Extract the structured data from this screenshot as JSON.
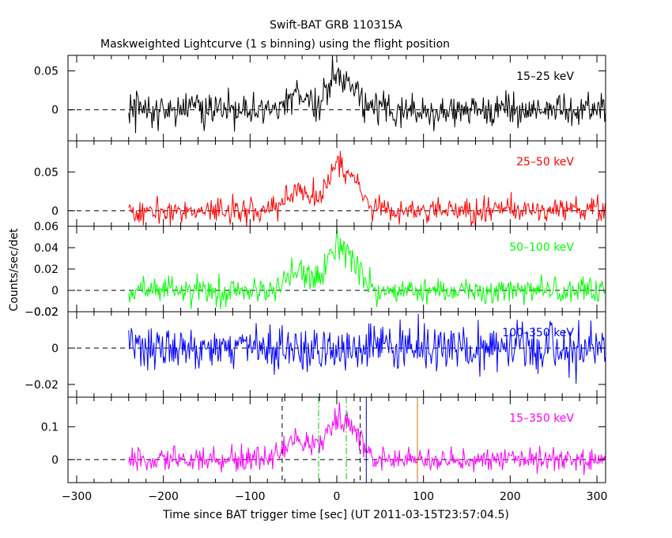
{
  "chart_data": {
    "type": "line",
    "title": "Swift-BAT GRB 110315A",
    "subtitle": "Maskweighted Lightcurve (1 s binning) using the flight position",
    "xlabel": "Time since BAT trigger time [sec] (UT 2011-03-15T23:57:04.5)",
    "ylabel": "Counts/sec/det",
    "xlim": [
      -310,
      310
    ],
    "xticks": [
      -300,
      -200,
      -100,
      0,
      100,
      200,
      300
    ],
    "xtick_labels": [
      "−300",
      "−200",
      "−100",
      "0",
      "100",
      "200",
      "300"
    ],
    "data_range_x": [
      -240,
      310
    ],
    "bin_seconds": 1,
    "panels": [
      {
        "name": "15-25 keV",
        "label": "15–25 keV",
        "color": "#000000",
        "ylim": [
          -0.04,
          0.07
        ],
        "yticks": [
          0,
          0.05
        ],
        "ytick_labels": [
          "0",
          "0.05"
        ],
        "noise_sigma": 0.011,
        "peak_value": 0.06
      },
      {
        "name": "25-50 keV",
        "label": "25–50 keV",
        "color": "#ff0000",
        "ylim": [
          -0.02,
          0.09
        ],
        "yticks": [
          0,
          0.05
        ],
        "ytick_labels": [
          "0",
          "0.05"
        ],
        "noise_sigma": 0.008,
        "peak_value": 0.085
      },
      {
        "name": "50-100 keV",
        "label": "50–100 keV",
        "color": "#00ff00",
        "ylim": [
          -0.02,
          0.06
        ],
        "yticks": [
          -0.02,
          0,
          0.02,
          0.04,
          0.06
        ],
        "ytick_labels": [
          "−0.02",
          "0",
          "0.02",
          "0.04",
          "0.06"
        ],
        "noise_sigma": 0.006,
        "peak_value": 0.055
      },
      {
        "name": "100-350 keV",
        "label": "100–350 keV",
        "color": "#0000ff",
        "ylim": [
          -0.027,
          0.02
        ],
        "yticks": [
          -0.02,
          0,
          0.02
        ],
        "ytick_labels": [
          "−0.02",
          "0",
          "0.02"
        ],
        "noise_sigma": 0.0065,
        "peak_value": 0.0
      },
      {
        "name": "15-350 keV",
        "label": "15–350 keV",
        "color": "#ff00ff",
        "ylim": [
          -0.07,
          0.19
        ],
        "yticks": [
          0,
          0.1
        ],
        "ytick_labels": [
          "0",
          "0.1"
        ],
        "noise_sigma": 0.018,
        "peak_value": 0.18
      }
    ],
    "markers": [
      {
        "name": "t90-start",
        "x": -63,
        "style": "dashed",
        "color": "#000000"
      },
      {
        "name": "t90-end",
        "x": 27,
        "style": "dashed",
        "color": "#000000"
      },
      {
        "name": "t50-start",
        "x": -21,
        "style": "dash-dot",
        "color": "#00cc00"
      },
      {
        "name": "t50-end",
        "x": 11,
        "style": "dash-dot",
        "color": "#00cc00"
      },
      {
        "name": "t100-end-marker",
        "x": 34,
        "style": "solid",
        "color": "#0000aa"
      },
      {
        "name": "slew-marker",
        "x": 93,
        "style": "solid",
        "color": "#cc7700"
      }
    ]
  }
}
